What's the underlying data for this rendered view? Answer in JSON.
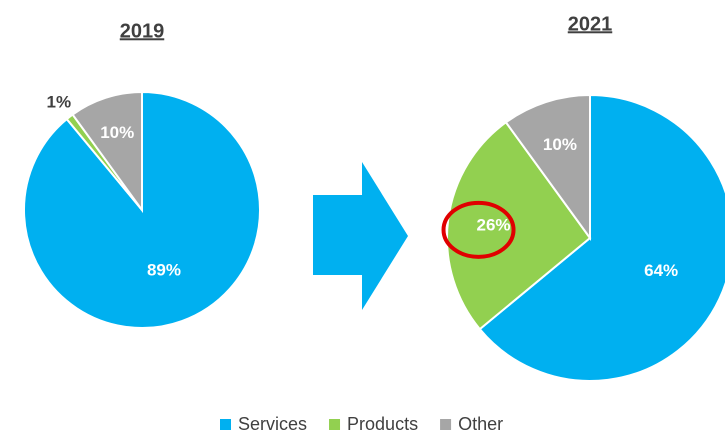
{
  "chart_data": [
    {
      "type": "pie",
      "title": "2019",
      "values": [
        89,
        1,
        10
      ],
      "value_labels": [
        "89%",
        "1%",
        "10%"
      ]
    },
    {
      "type": "pie",
      "title": "2021",
      "values": [
        64,
        26,
        10
      ],
      "value_labels": [
        "64%",
        "26%",
        "10%"
      ]
    }
  ],
  "legend": {
    "labels": [
      "Services",
      "Products",
      "Other"
    ],
    "colors": [
      "#00b0f0",
      "#92d050",
      "#a6a6a6"
    ]
  }
}
